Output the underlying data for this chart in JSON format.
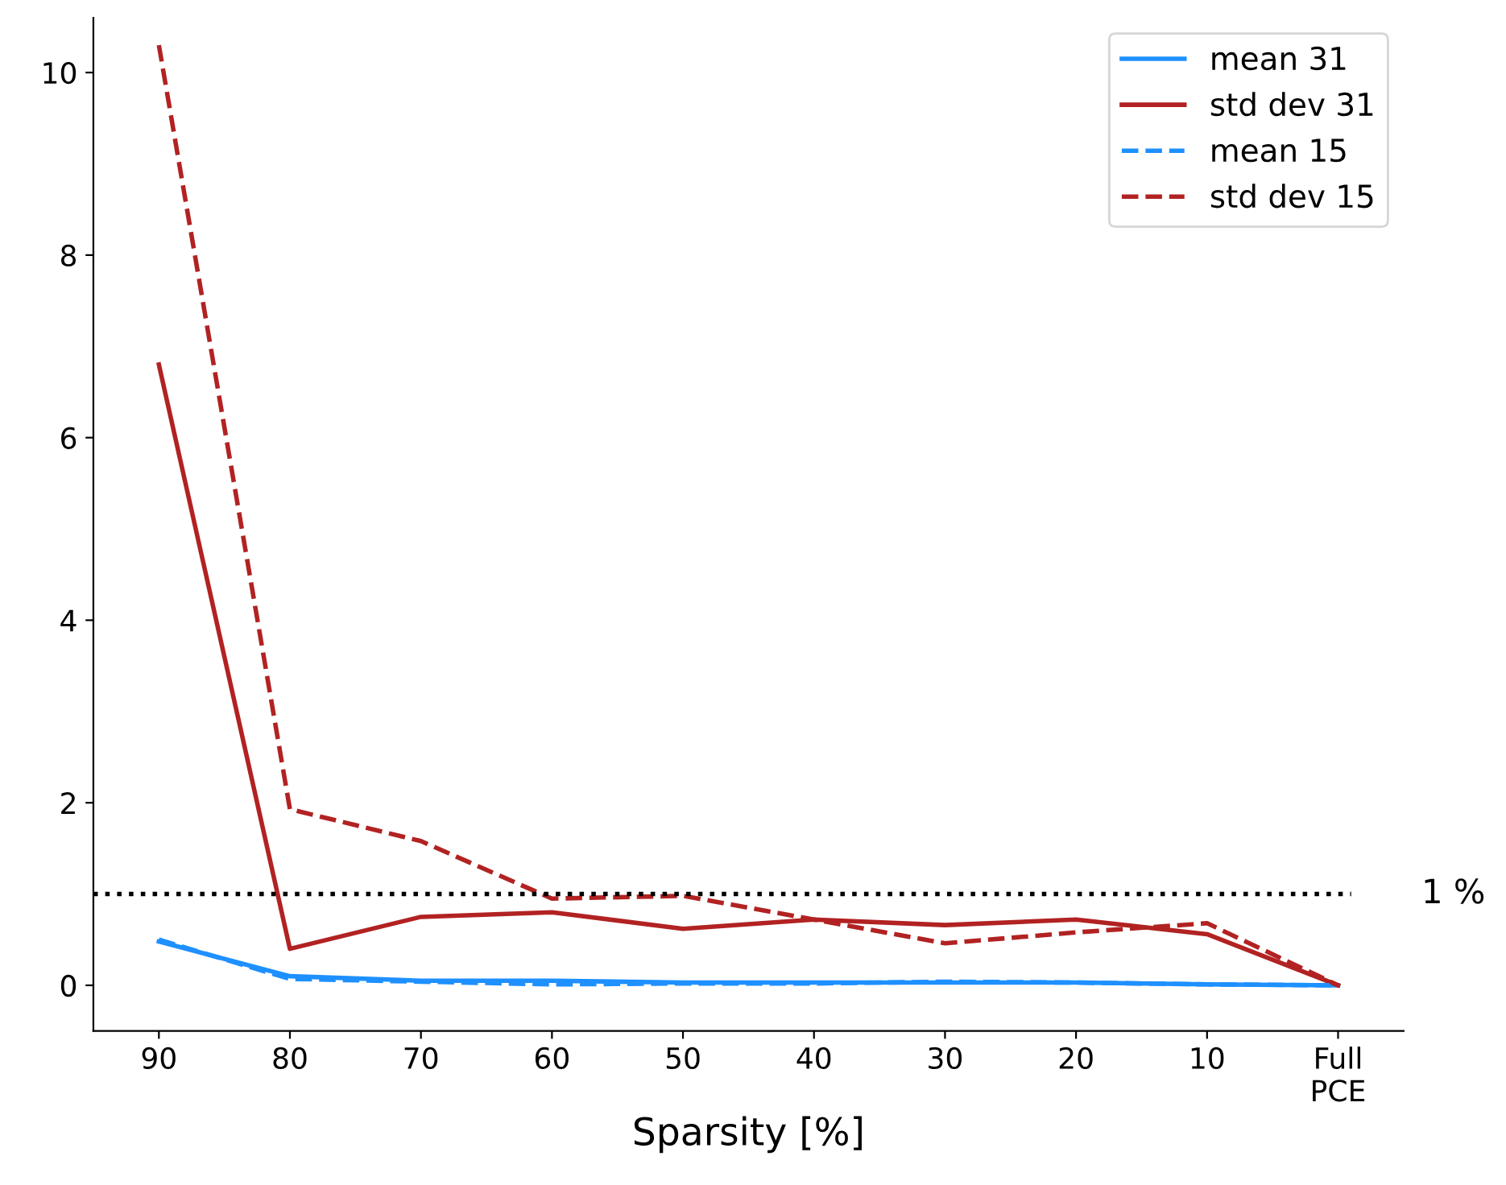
{
  "chart_data": {
    "type": "line",
    "xlabel": "Sparsity [%]",
    "categories": [
      "90",
      "80",
      "70",
      "60",
      "50",
      "40",
      "30",
      "20",
      "10",
      "Full\nPCE"
    ],
    "series": [
      {
        "name": "mean 31",
        "color": "#1e90ff",
        "line_style": "solid",
        "values": [
          0.48,
          0.1,
          0.05,
          0.05,
          0.03,
          0.03,
          0.03,
          0.03,
          0.01,
          0
        ]
      },
      {
        "name": "std dev 31",
        "color": "#b22222",
        "line_style": "solid",
        "values": [
          6.8,
          0.4,
          0.75,
          0.8,
          0.62,
          0.72,
          0.66,
          0.72,
          0.56,
          0
        ]
      },
      {
        "name": "mean 15",
        "color": "#1e90ff",
        "line_style": "dashed",
        "values": [
          0.5,
          0.07,
          0.04,
          0.01,
          0.02,
          0.02,
          0.04,
          0.03,
          0.01,
          0
        ]
      },
      {
        "name": "std dev 15",
        "color": "#b22222",
        "line_style": "dashed",
        "values": [
          10.3,
          1.93,
          1.58,
          0.95,
          0.98,
          0.72,
          0.46,
          0.58,
          0.68,
          0
        ]
      }
    ],
    "ylim": [
      -0.5,
      10.6
    ],
    "yticks": [
      0,
      2,
      4,
      6,
      8,
      10
    ],
    "ref_lines": [
      {
        "axis": "y",
        "value": 1,
        "label": "1 %",
        "color": "#000000",
        "line_style": "dotted"
      }
    ],
    "legend": "top right",
    "grid": false,
    "marker": "none"
  }
}
